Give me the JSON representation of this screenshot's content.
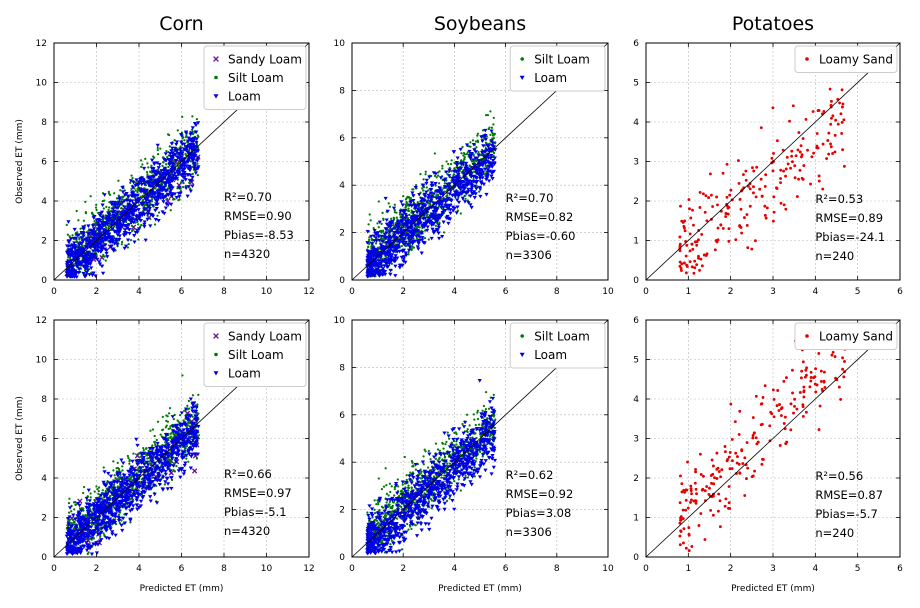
{
  "chart_data": [
    {
      "type": "scatter",
      "crop": "Corn",
      "title": "Corn",
      "row": 0,
      "col": 0,
      "xlabel": "",
      "ylabel": "Observed ET (mm)",
      "xlim": [
        0,
        12
      ],
      "ylim": [
        0,
        12
      ],
      "xticks": [
        "0",
        "2",
        "4",
        "6",
        "8",
        "10",
        "12"
      ],
      "yticks": [
        "0",
        "2",
        "4",
        "6",
        "8",
        "10",
        "12"
      ],
      "grid": true,
      "legend": "top-right",
      "reference_line": "1:1",
      "series": [
        {
          "name": "Sandy Loam",
          "color": "#6a0d91",
          "marker": "x"
        },
        {
          "name": "Silt Loam",
          "color": "#007a00",
          "marker": "dot"
        },
        {
          "name": "Loam",
          "color": "#0000e6",
          "marker": "triangle-down"
        }
      ],
      "stats": [
        "R²=0.70",
        "RMSE=0.90",
        "Pbias=-8.53",
        "n=4320"
      ],
      "stats_pos": [
        8,
        4
      ]
    },
    {
      "type": "scatter",
      "crop": "Soybeans",
      "title": "Soybeans",
      "row": 0,
      "col": 1,
      "xlabel": "",
      "ylabel": "",
      "xlim": [
        0,
        10
      ],
      "ylim": [
        0,
        10
      ],
      "xticks": [
        "0",
        "2",
        "4",
        "6",
        "8",
        "10"
      ],
      "yticks": [
        "0",
        "2",
        "4",
        "6",
        "8",
        "10"
      ],
      "grid": true,
      "legend": "top-right",
      "reference_line": "1:1",
      "series": [
        {
          "name": "Silt Loam",
          "color": "#007a00",
          "marker": "dot"
        },
        {
          "name": "Loam",
          "color": "#0000e6",
          "marker": "triangle-down"
        }
      ],
      "stats": [
        "R²=0.70",
        "RMSE=0.82",
        "Pbias=-0.60",
        "n=3306"
      ],
      "stats_pos": [
        6,
        3.3
      ]
    },
    {
      "type": "scatter",
      "crop": "Potatoes",
      "title": "Potatoes",
      "row": 0,
      "col": 2,
      "xlabel": "",
      "ylabel": "",
      "xlim": [
        0,
        6
      ],
      "ylim": [
        0,
        6
      ],
      "xticks": [
        "0",
        "1",
        "2",
        "3",
        "4",
        "5",
        "6"
      ],
      "yticks": [
        "0",
        "1",
        "2",
        "3",
        "4",
        "5",
        "6"
      ],
      "grid": true,
      "legend": "top-right",
      "reference_line": "1:1",
      "series": [
        {
          "name": "Loamy Sand",
          "color": "#e60000",
          "marker": "dot"
        }
      ],
      "stats": [
        "R²=0.53",
        "RMSE=0.89",
        "Pbias=-24.1",
        "n=240"
      ],
      "stats_pos": [
        4,
        1.95
      ]
    },
    {
      "type": "scatter",
      "crop": "Corn",
      "title": "",
      "row": 1,
      "col": 0,
      "xlabel": "Predicted ET (mm)",
      "ylabel": "Observed ET (mm)",
      "xlim": [
        0,
        12
      ],
      "ylim": [
        0,
        12
      ],
      "xticks": [
        "0",
        "2",
        "4",
        "6",
        "8",
        "10",
        "12"
      ],
      "yticks": [
        "0",
        "2",
        "4",
        "6",
        "8",
        "10",
        "12"
      ],
      "grid": true,
      "legend": "top-right",
      "reference_line": "1:1",
      "series": [
        {
          "name": "Sandy Loam",
          "color": "#6a0d91",
          "marker": "x"
        },
        {
          "name": "Silt Loam",
          "color": "#007a00",
          "marker": "dot"
        },
        {
          "name": "Loam",
          "color": "#0000e6",
          "marker": "triangle-down"
        }
      ],
      "stats": [
        "R²=0.66",
        "RMSE=0.97",
        "Pbias=-5.1",
        "n=4320"
      ],
      "stats_pos": [
        8,
        4
      ]
    },
    {
      "type": "scatter",
      "crop": "Soybeans",
      "title": "",
      "row": 1,
      "col": 1,
      "xlabel": "Predicted ET (mm)",
      "ylabel": "",
      "xlim": [
        0,
        10
      ],
      "ylim": [
        0,
        10
      ],
      "xticks": [
        "0",
        "2",
        "4",
        "6",
        "8",
        "10"
      ],
      "yticks": [
        "0",
        "2",
        "4",
        "6",
        "8",
        "10"
      ],
      "grid": true,
      "legend": "top-right",
      "reference_line": "1:1",
      "series": [
        {
          "name": "Silt Loam",
          "color": "#007a00",
          "marker": "dot"
        },
        {
          "name": "Loam",
          "color": "#0000e6",
          "marker": "triangle-down"
        }
      ],
      "stats": [
        "R²=0.62",
        "RMSE=0.92",
        "Pbias=3.08",
        "n=3306"
      ],
      "stats_pos": [
        6,
        3.3
      ]
    },
    {
      "type": "scatter",
      "crop": "Potatoes",
      "title": "",
      "row": 1,
      "col": 2,
      "xlabel": "Predicted ET (mm)",
      "ylabel": "",
      "xlim": [
        0,
        6
      ],
      "ylim": [
        0,
        6
      ],
      "xticks": [
        "0",
        "1",
        "2",
        "3",
        "4",
        "5",
        "6"
      ],
      "yticks": [
        "0",
        "1",
        "2",
        "3",
        "4",
        "5",
        "6"
      ],
      "grid": true,
      "legend": "top-right",
      "reference_line": "1:1",
      "series": [
        {
          "name": "Loamy Sand",
          "color": "#e60000",
          "marker": "dot"
        }
      ],
      "stats": [
        "R²=0.56",
        "RMSE=0.87",
        "Pbias=-5.7",
        "n=240"
      ],
      "stats_pos": [
        4,
        1.95
      ]
    }
  ]
}
